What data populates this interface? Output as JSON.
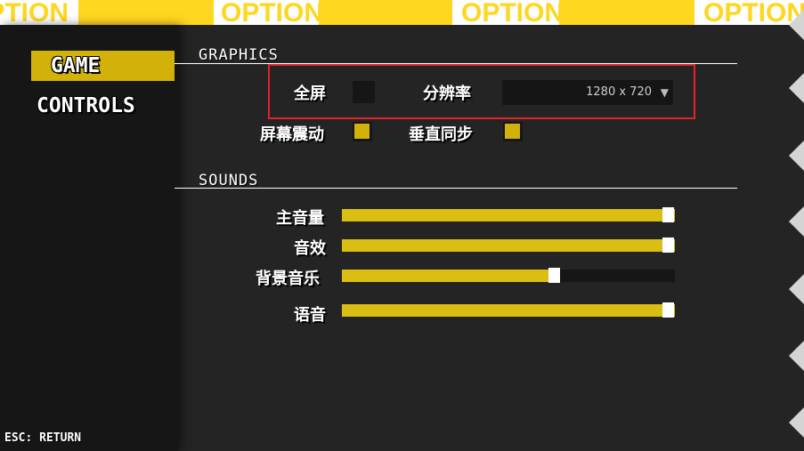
{
  "banner": {
    "text": "OPTION"
  },
  "sidebar": {
    "items": [
      {
        "label": "GAME",
        "active": true
      },
      {
        "label": "CONTROLS",
        "active": false
      }
    ],
    "esc_hint": "ESC: RETURN"
  },
  "graphics": {
    "title": "GRAPHICS",
    "fullscreen": {
      "label": "全屏",
      "checked": false
    },
    "resolution": {
      "label": "分辨率",
      "value": "1280 x 720"
    },
    "screen_shake": {
      "label": "屏幕震动",
      "checked": true
    },
    "vsync": {
      "label": "垂直同步",
      "checked": true
    }
  },
  "sounds": {
    "title": "SOUNDS",
    "sliders": [
      {
        "label": "主音量",
        "value": 100
      },
      {
        "label": "音效",
        "value": 100
      },
      {
        "label": "背景音乐",
        "value": 64
      },
      {
        "label": "语音",
        "value": 100
      }
    ]
  },
  "colors": {
    "accent": "#D1B10A",
    "banner": "#FFD620",
    "highlight_box": "#e3222a"
  }
}
